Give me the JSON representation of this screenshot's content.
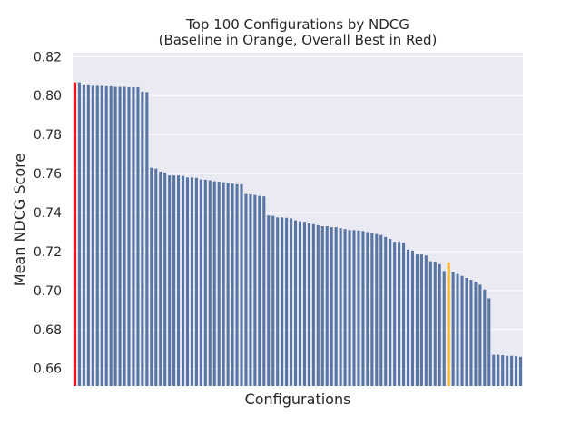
{
  "chart_data": {
    "type": "bar",
    "title": "Top 100 Configurations by NDCG",
    "subtitle": "(Baseline in Orange, Overall Best in Red)",
    "xlabel": "Configurations",
    "ylabel": "Mean NDCG Score",
    "ylim": [
      0.651,
      0.822
    ],
    "yticks": [
      0.66,
      0.68,
      0.7,
      0.72,
      0.74,
      0.76,
      0.78,
      0.8,
      0.82
    ],
    "ytick_labels": [
      "0.66",
      "0.68",
      "0.70",
      "0.72",
      "0.74",
      "0.76",
      "0.78",
      "0.80",
      "0.82"
    ],
    "grid": true,
    "colors": {
      "default": "#5975a4",
      "best": "#e41a1c",
      "baseline": "#f5b731",
      "background": "#eaeaf2",
      "grid": "#ffffff"
    },
    "best_index": 0,
    "baseline_index": 83,
    "values": [
      0.8068,
      0.8068,
      0.8053,
      0.8053,
      0.805,
      0.805,
      0.805,
      0.8048,
      0.8048,
      0.8045,
      0.8045,
      0.8045,
      0.8043,
      0.8043,
      0.8043,
      0.802,
      0.8018,
      0.763,
      0.7625,
      0.761,
      0.7605,
      0.759,
      0.759,
      0.759,
      0.7588,
      0.758,
      0.758,
      0.7578,
      0.757,
      0.7568,
      0.7565,
      0.756,
      0.7558,
      0.7555,
      0.755,
      0.7548,
      0.7545,
      0.7545,
      0.7495,
      0.7493,
      0.749,
      0.7485,
      0.7483,
      0.7385,
      0.7383,
      0.7375,
      0.7375,
      0.7373,
      0.737,
      0.736,
      0.7355,
      0.7353,
      0.7345,
      0.734,
      0.7335,
      0.733,
      0.733,
      0.7325,
      0.7325,
      0.732,
      0.7315,
      0.731,
      0.731,
      0.7308,
      0.7305,
      0.73,
      0.7295,
      0.729,
      0.7285,
      0.7275,
      0.7265,
      0.725,
      0.725,
      0.7245,
      0.721,
      0.7205,
      0.7185,
      0.7185,
      0.718,
      0.715,
      0.7148,
      0.7135,
      0.71,
      0.7145,
      0.7095,
      0.7085,
      0.7075,
      0.7065,
      0.7055,
      0.7045,
      0.703,
      0.7005,
      0.696,
      0.667,
      0.667,
      0.6668,
      0.6665,
      0.6665,
      0.6663,
      0.666
    ]
  }
}
